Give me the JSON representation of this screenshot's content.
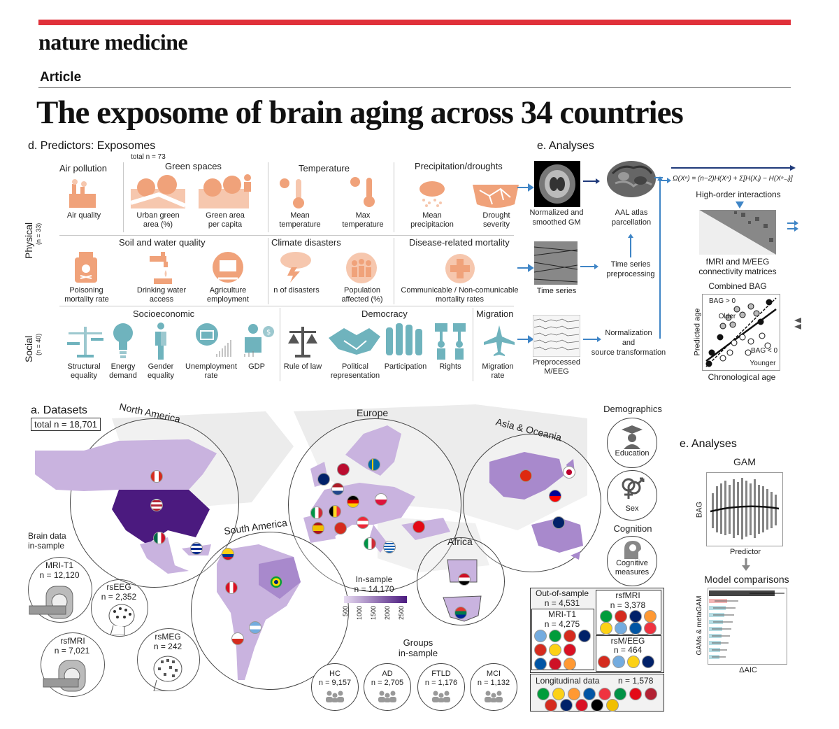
{
  "header": {
    "journal": "nature medicine",
    "article_type": "Article",
    "title": "The exposome of brain aging across 34 countries"
  },
  "predictors": {
    "heading": "d. Predictors: Exposomes",
    "total": "total n = 73",
    "physical_label": "Physical",
    "physical_n": "(n = 33)",
    "social_label": "Social",
    "social_n": "(n = 40)",
    "groups": {
      "air": "Air pollution",
      "green": "Green spaces",
      "temperature": "Temperature",
      "precip": "Precipitation/droughts",
      "soil": "Soil and water quality",
      "climate": "Climate disasters",
      "disease": "Disease-related mortality",
      "socio": "Socioeconomic",
      "democracy": "Democracy",
      "migration": "Migration"
    },
    "items": {
      "air_quality": "Air quality",
      "urban_green_1": "Urban green",
      "urban_green_2": "area (%)",
      "green_capita_1": "Green area",
      "green_capita_2": "per capita",
      "mean_temp_1": "Mean",
      "mean_temp_2": "temperature",
      "max_temp_1": "Max",
      "max_temp_2": "temperature",
      "mean_precip_1": "Mean",
      "mean_precip_2": "precipitacion",
      "drought_1": "Drought",
      "drought_2": "severity",
      "poison_1": "Poisoning",
      "poison_2": "mortality rate",
      "water_1": "Drinking water",
      "water_2": "access",
      "agri_1": "Agriculture",
      "agri_2": "employment",
      "disasters": "n of disasters",
      "pop_affected_1": "Population",
      "pop_affected_2": "affected (%)",
      "communicable_1": "Communicable / Non-comunicable",
      "communicable_2": "mortality rates",
      "structural_1": "Structural",
      "structural_2": "equality",
      "energy_1": "Energy",
      "energy_2": "demand",
      "gender_1": "Gender",
      "gender_2": "equality",
      "unemployment_1": "Unemployment",
      "unemployment_2": "rate",
      "gdp": "GDP",
      "rule_of_law": "Rule of law",
      "political_1": "Political",
      "political_2": "representation",
      "participation": "Participation",
      "rights": "Rights",
      "migration_1": "Migration",
      "migration_2": "rate"
    }
  },
  "analyses_top": {
    "heading": "e. Analyses",
    "normalized_1": "Normalized and",
    "normalized_2": "smoothed GM",
    "aal_1": "AAL atlas",
    "aal_2": "parcellation",
    "formula": "Ω(Xⁿ) = (n−2)H(Xⁿ) + Σ[H(Xⱼ) − H(Xⁿ₋ⱼ)]",
    "high_order": "High-order interactions",
    "time_series": "Time series",
    "ts_pre_1": "Time series",
    "ts_pre_2": "preprocessing",
    "conn_1": "fMRI and M/EEG",
    "conn_2": "connectivity matrices",
    "combined_bag": "Combined BAG",
    "bag_pos": "BAG > 0",
    "older": "Older",
    "bag_neg": "BAG < 0",
    "younger": "Younger",
    "predicted_age": "Predicted age",
    "chrono_age": "Chronological age",
    "preproc_1": "Preprocessed",
    "preproc_2": "M/EEG",
    "norm_trans_1": "Normalization",
    "norm_trans_2": "and",
    "norm_trans_3": "source transformation"
  },
  "datasets": {
    "heading": "a. Datasets",
    "total": "total n = 18,701",
    "north_america": "North America",
    "europe": "Europe",
    "asia": "Asia & Oceania",
    "south_america": "South America",
    "africa": "Africa",
    "brain_data_1": "Brain data",
    "brain_data_2": "in-sample",
    "mri_t1": "MRI-T1",
    "mri_t1_n": "n = 12,120",
    "rseeg": "rsEEG",
    "rseeg_n": "n = 2,352",
    "rsfmri": "rsfMRI",
    "rsfmri_n": "n = 7,021",
    "rsmeg": "rsMEG",
    "rsmeg_n": "n = 242",
    "in_sample": "In-sample",
    "in_sample_n": "n = 14,170",
    "scale_ticks": [
      "500",
      "1000",
      "1500",
      "2000",
      "2500"
    ],
    "groups_1": "Groups",
    "groups_2": "in-sample",
    "groups": [
      {
        "name": "HC",
        "n": "n = 9,157"
      },
      {
        "name": "AD",
        "n": "n = 2,705"
      },
      {
        "name": "FTLD",
        "n": "n = 1,176"
      },
      {
        "name": "MCI",
        "n": "n = 1,132"
      }
    ],
    "demographics": "Demographics",
    "education": "Education",
    "sex": "Sex",
    "cognition": "Cognition",
    "cognitive_1": "Cognitive",
    "cognitive_2": "measures",
    "oos": "Out-of-sample",
    "oos_n": "n = 4,531",
    "oos_mri": "MRI-T1",
    "oos_mri_n": "n = 4,275",
    "oos_rsfmri": "rsfMRI",
    "oos_rsfmri_n": "n = 3,378",
    "oos_rsmeeg": "rsM/EEG",
    "oos_rsmeeg_n": "n = 464",
    "longitudinal": "Longitudinal data",
    "longitudinal_n": "n = 1,578"
  },
  "analyses_bottom": {
    "heading": "e. Analyses",
    "gam": "GAM",
    "bag": "BAG",
    "predictor": "Predictor",
    "model_comp": "Model comparisons",
    "gams": "GAMs & metaGAM",
    "daic": "ΔAIC"
  },
  "colors": {
    "accent_red": "#e0303a",
    "icon_orange": "#f0a27a",
    "social_teal": "#6fb3bd",
    "map_light": "#c9b3df",
    "map_dark": "#4b1a7f"
  }
}
